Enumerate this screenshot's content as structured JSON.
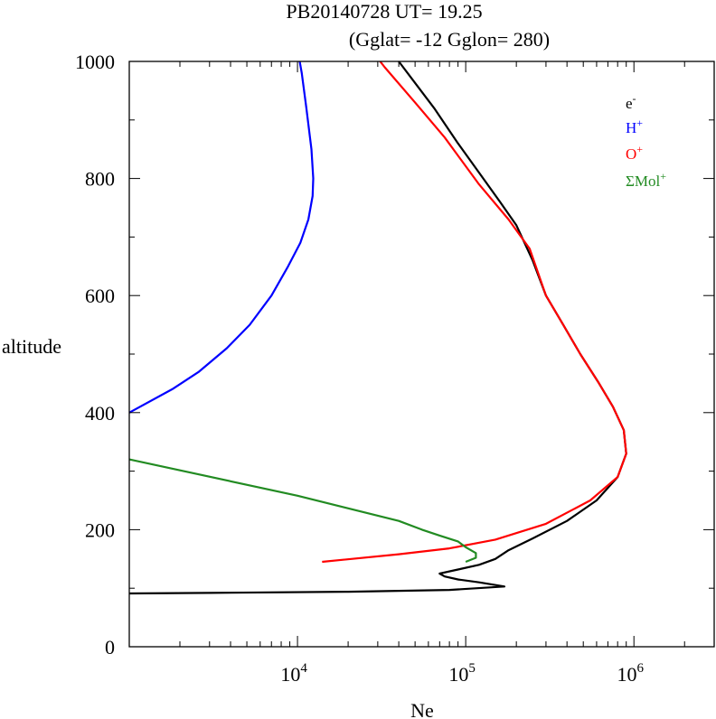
{
  "title_line1": "PB20140728   UT=  19.25",
  "title_line2": "(Gglat= -12   Gglon=  280)",
  "chart_data": {
    "type": "line",
    "title": "PB20140728   UT=  19.25   (Gglat= -12   Gglon=  280)",
    "xlabel": "Ne",
    "ylabel": "altitude",
    "xscale": "log",
    "xlim": [
      1000,
      3000000
    ],
    "ylim": [
      0,
      1000
    ],
    "x_ticks": [
      {
        "base": "10",
        "exp": "4",
        "value": 10000
      },
      {
        "base": "10",
        "exp": "5",
        "value": 100000
      },
      {
        "base": "10",
        "exp": "6",
        "value": 1000000
      }
    ],
    "y_ticks": [
      "0",
      "200",
      "400",
      "600",
      "800",
      "1000"
    ],
    "legend_placement": "top-right",
    "series": [
      {
        "name": "e",
        "sup": "-",
        "color": "#000000",
        "points": [
          [
            1000,
            91
          ],
          [
            3000,
            92
          ],
          [
            20000,
            94
          ],
          [
            80000,
            97
          ],
          [
            170000,
            103
          ],
          [
            120000,
            110
          ],
          [
            90000,
            115
          ],
          [
            75000,
            120
          ],
          [
            70000,
            125
          ],
          [
            90000,
            132
          ],
          [
            120000,
            140
          ],
          [
            150000,
            150
          ],
          [
            180000,
            165
          ],
          [
            250000,
            185
          ],
          [
            400000,
            215
          ],
          [
            600000,
            250
          ],
          [
            800000,
            290
          ],
          [
            900000,
            330
          ],
          [
            870000,
            370
          ],
          [
            750000,
            410
          ],
          [
            620000,
            450
          ],
          [
            480000,
            500
          ],
          [
            380000,
            550
          ],
          [
            300000,
            600
          ],
          [
            250000,
            660
          ],
          [
            200000,
            720
          ],
          [
            160000,
            760
          ],
          [
            120000,
            810
          ],
          [
            90000,
            860
          ],
          [
            65000,
            920
          ],
          [
            48000,
            970
          ],
          [
            40000,
            1000
          ]
        ]
      },
      {
        "name": "H",
        "sup": "+",
        "color": "#0000ff",
        "points": [
          [
            1000,
            400
          ],
          [
            1800,
            440
          ],
          [
            2600,
            470
          ],
          [
            3800,
            510
          ],
          [
            5200,
            550
          ],
          [
            7000,
            600
          ],
          [
            8800,
            650
          ],
          [
            10400,
            690
          ],
          [
            11600,
            730
          ],
          [
            12300,
            770
          ],
          [
            12400,
            800
          ],
          [
            12100,
            850
          ],
          [
            11300,
            920
          ],
          [
            10600,
            980
          ],
          [
            10300,
            1000
          ]
        ]
      },
      {
        "name": "O",
        "sup": "+",
        "color": "#ff0000",
        "points": [
          [
            14000,
            145
          ],
          [
            40000,
            158
          ],
          [
            80000,
            168
          ],
          [
            150000,
            183
          ],
          [
            300000,
            210
          ],
          [
            550000,
            250
          ],
          [
            800000,
            290
          ],
          [
            900000,
            330
          ],
          [
            870000,
            370
          ],
          [
            750000,
            410
          ],
          [
            620000,
            450
          ],
          [
            480000,
            500
          ],
          [
            380000,
            550
          ],
          [
            300000,
            600
          ],
          [
            240000,
            680
          ],
          [
            180000,
            730
          ],
          [
            120000,
            790
          ],
          [
            75000,
            870
          ],
          [
            50000,
            930
          ],
          [
            33000,
            990
          ],
          [
            31000,
            1000
          ]
        ]
      },
      {
        "name": "ΣMol",
        "sup": "+",
        "color": "#228b22",
        "points": [
          [
            1000,
            320
          ],
          [
            10000,
            258
          ],
          [
            40000,
            215
          ],
          [
            55000,
            200
          ],
          [
            70000,
            190
          ],
          [
            90000,
            180
          ],
          [
            100000,
            170
          ],
          [
            115000,
            160
          ],
          [
            115000,
            152
          ],
          [
            100000,
            145
          ]
        ]
      }
    ]
  }
}
